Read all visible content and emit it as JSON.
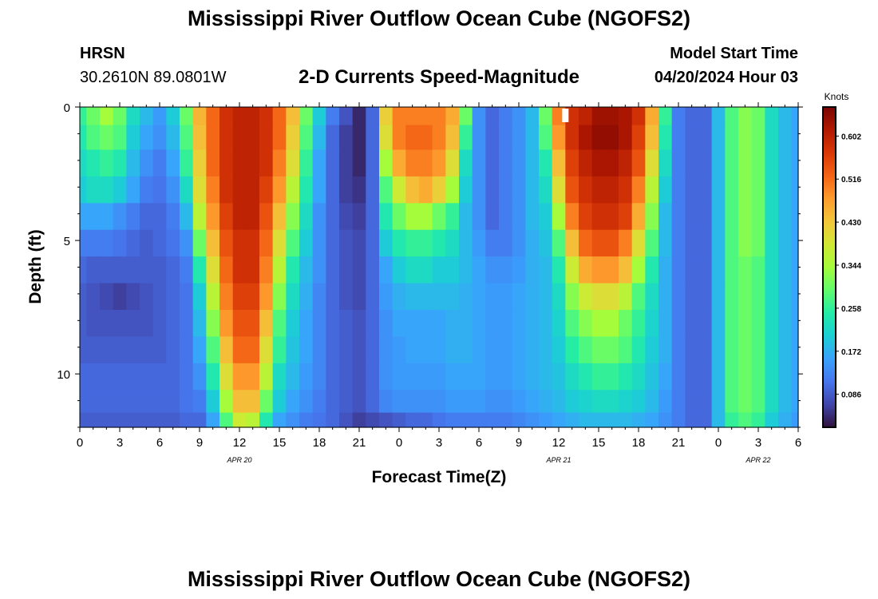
{
  "header": {
    "title": "Mississippi River Outflow Ocean Cube (NGOFS2)",
    "station_id": "HRSN",
    "station_coords": "30.2610N  89.0801W",
    "subtitle": "2-D Currents Speed-Magnitude",
    "model_label": "Model Start Time",
    "model_time": "04/20/2024 Hour 03"
  },
  "footer": {
    "title": "Mississippi River Outflow Ocean Cube (NGOFS2)"
  },
  "chart_data": {
    "type": "heatmap",
    "title": "2-D Currents Speed-Magnitude",
    "xlabel": "Forecast Time(Z)",
    "ylabel": "Depth (ft)",
    "x_range_hours": [
      0,
      54
    ],
    "x_tick_labels": [
      "0",
      "3",
      "6",
      "9",
      "12",
      "15",
      "18",
      "21",
      "0",
      "3",
      "6",
      "9",
      "12",
      "15",
      "18",
      "21",
      "0",
      "3",
      "6"
    ],
    "date_labels": [
      {
        "hour": 12,
        "text": "APR 20"
      },
      {
        "hour": 36,
        "text": "APR 21"
      },
      {
        "hour": 51,
        "text": "APR 22"
      }
    ],
    "depth_range_ft": [
      0,
      12
    ],
    "y_ticks": [
      0,
      5,
      10
    ],
    "colorbar": {
      "unit": "Knots",
      "range": [
        0.02,
        0.66
      ],
      "ticks": [
        0.086,
        0.172,
        0.258,
        0.344,
        0.43,
        0.516,
        0.602
      ],
      "tick_labels": [
        "0.086",
        "0.172",
        "0.258",
        "0.344",
        "0.430",
        "0.516",
        "0.602"
      ]
    },
    "depth_levels_ft": [
      0.25,
      1.1,
      2.1,
      3.1,
      4.1,
      5.1,
      6.1,
      7.1,
      8.1,
      9.1,
      10.1,
      11.1,
      11.8
    ],
    "time_hours": [
      0,
      1,
      2,
      3,
      4,
      5,
      6,
      7,
      8,
      9,
      10,
      11,
      12,
      13,
      14,
      15,
      16,
      17,
      18,
      19,
      20,
      21,
      22,
      23,
      24,
      25,
      26,
      27,
      28,
      29,
      30,
      31,
      32,
      33,
      34,
      35,
      36,
      37,
      38,
      39,
      40,
      41,
      42,
      43,
      44,
      45,
      46,
      47,
      48,
      49,
      50,
      51,
      52,
      53,
      54
    ],
    "speed_knots": [
      [
        0.26,
        0.3,
        0.34,
        0.3,
        0.22,
        0.18,
        0.15,
        0.2,
        0.3,
        0.45,
        0.52,
        0.58,
        0.6,
        0.6,
        0.58,
        0.52,
        0.44,
        0.3,
        0.2,
        0.12,
        0.08,
        0.04,
        0.1,
        0.42,
        0.5,
        0.5,
        0.5,
        0.5,
        0.46,
        0.3,
        0.14,
        0.1,
        0.12,
        0.14,
        0.18,
        0.3,
        0.5,
        0.58,
        0.6,
        0.63,
        0.63,
        0.62,
        0.58,
        0.46,
        0.26,
        0.12,
        0.1,
        0.1,
        0.18,
        0.28,
        0.32,
        0.3,
        0.22,
        0.18,
        0.16
      ],
      [
        0.24,
        0.28,
        0.3,
        0.28,
        0.2,
        0.16,
        0.14,
        0.18,
        0.28,
        0.44,
        0.52,
        0.58,
        0.6,
        0.6,
        0.58,
        0.52,
        0.42,
        0.28,
        0.18,
        0.1,
        0.06,
        0.04,
        0.1,
        0.4,
        0.5,
        0.52,
        0.52,
        0.5,
        0.44,
        0.26,
        0.14,
        0.1,
        0.12,
        0.14,
        0.18,
        0.28,
        0.48,
        0.58,
        0.62,
        0.64,
        0.64,
        0.62,
        0.56,
        0.44,
        0.24,
        0.12,
        0.1,
        0.1,
        0.18,
        0.28,
        0.32,
        0.3,
        0.22,
        0.18,
        0.16
      ],
      [
        0.22,
        0.24,
        0.26,
        0.24,
        0.18,
        0.14,
        0.12,
        0.16,
        0.26,
        0.42,
        0.52,
        0.58,
        0.6,
        0.6,
        0.58,
        0.5,
        0.4,
        0.26,
        0.16,
        0.1,
        0.06,
        0.04,
        0.1,
        0.34,
        0.46,
        0.5,
        0.5,
        0.48,
        0.4,
        0.22,
        0.14,
        0.1,
        0.12,
        0.14,
        0.18,
        0.24,
        0.44,
        0.56,
        0.6,
        0.62,
        0.62,
        0.6,
        0.54,
        0.4,
        0.22,
        0.12,
        0.1,
        0.1,
        0.18,
        0.28,
        0.32,
        0.3,
        0.22,
        0.18,
        0.16
      ],
      [
        0.2,
        0.22,
        0.22,
        0.2,
        0.16,
        0.12,
        0.11,
        0.14,
        0.22,
        0.4,
        0.5,
        0.58,
        0.6,
        0.6,
        0.56,
        0.48,
        0.36,
        0.24,
        0.16,
        0.1,
        0.06,
        0.05,
        0.1,
        0.28,
        0.38,
        0.44,
        0.46,
        0.42,
        0.34,
        0.2,
        0.14,
        0.1,
        0.12,
        0.14,
        0.18,
        0.22,
        0.4,
        0.54,
        0.58,
        0.6,
        0.6,
        0.58,
        0.5,
        0.36,
        0.2,
        0.12,
        0.1,
        0.1,
        0.18,
        0.28,
        0.32,
        0.3,
        0.22,
        0.18,
        0.16
      ],
      [
        0.16,
        0.16,
        0.16,
        0.14,
        0.12,
        0.1,
        0.1,
        0.12,
        0.18,
        0.36,
        0.48,
        0.56,
        0.6,
        0.6,
        0.54,
        0.44,
        0.32,
        0.22,
        0.14,
        0.1,
        0.07,
        0.06,
        0.1,
        0.24,
        0.3,
        0.34,
        0.34,
        0.3,
        0.26,
        0.18,
        0.14,
        0.1,
        0.12,
        0.14,
        0.18,
        0.2,
        0.34,
        0.5,
        0.56,
        0.58,
        0.58,
        0.56,
        0.46,
        0.32,
        0.18,
        0.12,
        0.1,
        0.1,
        0.18,
        0.28,
        0.32,
        0.3,
        0.22,
        0.18,
        0.16
      ],
      [
        0.12,
        0.12,
        0.12,
        0.11,
        0.1,
        0.09,
        0.1,
        0.11,
        0.14,
        0.3,
        0.44,
        0.54,
        0.58,
        0.58,
        0.52,
        0.4,
        0.28,
        0.2,
        0.14,
        0.1,
        0.08,
        0.07,
        0.1,
        0.2,
        0.24,
        0.26,
        0.26,
        0.24,
        0.22,
        0.18,
        0.15,
        0.12,
        0.12,
        0.14,
        0.17,
        0.19,
        0.28,
        0.44,
        0.52,
        0.54,
        0.54,
        0.5,
        0.4,
        0.28,
        0.18,
        0.12,
        0.1,
        0.1,
        0.18,
        0.28,
        0.32,
        0.3,
        0.22,
        0.18,
        0.16
      ],
      [
        0.1,
        0.09,
        0.09,
        0.09,
        0.09,
        0.09,
        0.09,
        0.1,
        0.12,
        0.24,
        0.4,
        0.52,
        0.58,
        0.58,
        0.5,
        0.36,
        0.24,
        0.18,
        0.14,
        0.1,
        0.08,
        0.07,
        0.1,
        0.16,
        0.2,
        0.22,
        0.22,
        0.2,
        0.2,
        0.18,
        0.16,
        0.14,
        0.14,
        0.15,
        0.17,
        0.18,
        0.24,
        0.38,
        0.46,
        0.48,
        0.48,
        0.44,
        0.34,
        0.24,
        0.17,
        0.12,
        0.1,
        0.1,
        0.18,
        0.28,
        0.3,
        0.28,
        0.22,
        0.18,
        0.16
      ],
      [
        0.09,
        0.08,
        0.07,
        0.06,
        0.07,
        0.08,
        0.09,
        0.1,
        0.11,
        0.2,
        0.36,
        0.5,
        0.56,
        0.56,
        0.48,
        0.32,
        0.22,
        0.17,
        0.13,
        0.1,
        0.08,
        0.07,
        0.1,
        0.15,
        0.17,
        0.18,
        0.18,
        0.18,
        0.18,
        0.17,
        0.16,
        0.15,
        0.15,
        0.16,
        0.17,
        0.18,
        0.22,
        0.32,
        0.38,
        0.4,
        0.4,
        0.36,
        0.28,
        0.22,
        0.17,
        0.12,
        0.1,
        0.1,
        0.18,
        0.28,
        0.3,
        0.28,
        0.22,
        0.18,
        0.16
      ],
      [
        0.09,
        0.08,
        0.08,
        0.08,
        0.08,
        0.08,
        0.09,
        0.1,
        0.11,
        0.18,
        0.32,
        0.48,
        0.54,
        0.54,
        0.44,
        0.28,
        0.2,
        0.16,
        0.13,
        0.1,
        0.09,
        0.08,
        0.1,
        0.14,
        0.16,
        0.16,
        0.16,
        0.16,
        0.17,
        0.17,
        0.16,
        0.15,
        0.15,
        0.16,
        0.17,
        0.18,
        0.21,
        0.28,
        0.32,
        0.34,
        0.34,
        0.3,
        0.26,
        0.21,
        0.17,
        0.12,
        0.1,
        0.1,
        0.18,
        0.28,
        0.3,
        0.28,
        0.22,
        0.18,
        0.16
      ],
      [
        0.09,
        0.09,
        0.09,
        0.09,
        0.09,
        0.09,
        0.09,
        0.1,
        0.11,
        0.16,
        0.28,
        0.44,
        0.52,
        0.52,
        0.4,
        0.26,
        0.19,
        0.16,
        0.13,
        0.1,
        0.09,
        0.08,
        0.1,
        0.14,
        0.15,
        0.16,
        0.16,
        0.16,
        0.17,
        0.17,
        0.16,
        0.15,
        0.15,
        0.16,
        0.17,
        0.18,
        0.2,
        0.25,
        0.28,
        0.3,
        0.3,
        0.28,
        0.24,
        0.2,
        0.17,
        0.12,
        0.1,
        0.1,
        0.18,
        0.28,
        0.3,
        0.28,
        0.22,
        0.18,
        0.16
      ],
      [
        0.1,
        0.1,
        0.1,
        0.1,
        0.1,
        0.1,
        0.1,
        0.1,
        0.11,
        0.14,
        0.24,
        0.4,
        0.48,
        0.48,
        0.36,
        0.22,
        0.18,
        0.15,
        0.13,
        0.1,
        0.09,
        0.08,
        0.1,
        0.14,
        0.15,
        0.15,
        0.15,
        0.15,
        0.16,
        0.16,
        0.16,
        0.15,
        0.15,
        0.16,
        0.17,
        0.18,
        0.19,
        0.22,
        0.24,
        0.26,
        0.26,
        0.24,
        0.22,
        0.19,
        0.16,
        0.12,
        0.1,
        0.1,
        0.18,
        0.28,
        0.3,
        0.28,
        0.22,
        0.18,
        0.16
      ],
      [
        0.1,
        0.1,
        0.1,
        0.1,
        0.1,
        0.1,
        0.1,
        0.1,
        0.11,
        0.12,
        0.2,
        0.34,
        0.44,
        0.44,
        0.3,
        0.2,
        0.16,
        0.14,
        0.12,
        0.1,
        0.09,
        0.08,
        0.1,
        0.13,
        0.14,
        0.14,
        0.14,
        0.14,
        0.15,
        0.15,
        0.15,
        0.14,
        0.14,
        0.15,
        0.16,
        0.17,
        0.18,
        0.2,
        0.21,
        0.22,
        0.22,
        0.21,
        0.2,
        0.18,
        0.15,
        0.12,
        0.1,
        0.1,
        0.18,
        0.28,
        0.3,
        0.28,
        0.22,
        0.18,
        0.16
      ],
      [
        0.09,
        0.09,
        0.09,
        0.09,
        0.09,
        0.09,
        0.09,
        0.09,
        0.1,
        0.1,
        0.16,
        0.28,
        0.38,
        0.36,
        0.24,
        0.16,
        0.14,
        0.12,
        0.11,
        0.1,
        0.08,
        0.06,
        0.07,
        0.08,
        0.09,
        0.1,
        0.1,
        0.11,
        0.12,
        0.12,
        0.12,
        0.12,
        0.12,
        0.13,
        0.14,
        0.15,
        0.16,
        0.17,
        0.18,
        0.18,
        0.18,
        0.18,
        0.17,
        0.16,
        0.14,
        0.12,
        0.1,
        0.1,
        0.18,
        0.26,
        0.28,
        0.26,
        0.2,
        0.17,
        0.15
      ]
    ]
  },
  "colors": {
    "colormap": [
      "#30123b",
      "#4145ab",
      "#4675ed",
      "#39a2fc",
      "#1bcfd4",
      "#24eca6",
      "#61fc6c",
      "#a4fc3b",
      "#d1e834",
      "#f3c63a",
      "#fe9b2d",
      "#f36315",
      "#d93806",
      "#b11901",
      "#7a0403"
    ],
    "marker": "#ffffff",
    "axis": "#000000"
  }
}
